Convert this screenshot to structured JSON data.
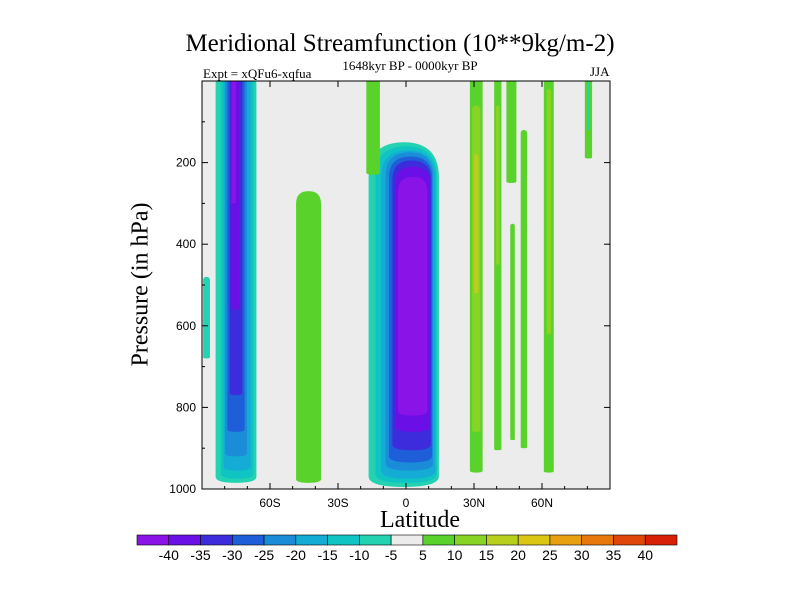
{
  "chart_data": {
    "type": "heatmap",
    "title": "Meridional Streamfunction (10**9kg/m-2)",
    "subtitle": "1648kyr BP - 0000kyr BP",
    "left_annotation": "Expt = xQFu6-xqfua",
    "right_annotation": "JJA",
    "xlabel": "Latitude",
    "ylabel": "Pressure (in hPa)",
    "x_range": [
      -90,
      90
    ],
    "y_range": [
      1000,
      0
    ],
    "x_ticks": [
      {
        "value": -60,
        "label": "60S"
      },
      {
        "value": -30,
        "label": "30S"
      },
      {
        "value": 0,
        "label": "0"
      },
      {
        "value": 30,
        "label": "30N"
      },
      {
        "value": 60,
        "label": "60N"
      }
    ],
    "y_ticks": [
      {
        "value": 200,
        "label": "200"
      },
      {
        "value": 400,
        "label": "400"
      },
      {
        "value": 600,
        "label": "600"
      },
      {
        "value": 800,
        "label": "800"
      },
      {
        "value": 1000,
        "label": "1000"
      }
    ],
    "colorbar": {
      "labels": [
        "-40",
        "-35",
        "-30",
        "-25",
        "-20",
        "-15",
        "-10",
        "-5",
        "5",
        "10",
        "15",
        "20",
        "25",
        "30",
        "35",
        "40"
      ],
      "colors": [
        "#8a14e8",
        "#6a10e6",
        "#3c2cdc",
        "#1e5ed8",
        "#1a8cd8",
        "#14acd4",
        "#10c4c4",
        "#22d2b0",
        "#ececec",
        "#5ad22c",
        "#88d424",
        "#b8d01c",
        "#dcc614",
        "#e8a010",
        "#e8780c",
        "#e0460a",
        "#d82008"
      ]
    },
    "contour_regions": [
      {
        "name": "south-polar-cell",
        "lat_range": [
          -85,
          -67
        ],
        "p_range": [
          1000,
          0
        ],
        "min": -40,
        "peak_lat": -75
      },
      {
        "name": "southern-subtropical-positive",
        "lat_range": [
          -48,
          -38
        ],
        "p_range": [
          980,
          270
        ],
        "max": 10
      },
      {
        "name": "tropical-hadley-cell",
        "lat_range": [
          -15,
          14
        ],
        "p_range": [
          990,
          150
        ],
        "min": -40,
        "peak_lat": 3
      },
      {
        "name": "northern-positive-bands",
        "lat_range": [
          27,
          85
        ],
        "p_range": [
          960,
          0
        ],
        "max": 20
      }
    ]
  }
}
